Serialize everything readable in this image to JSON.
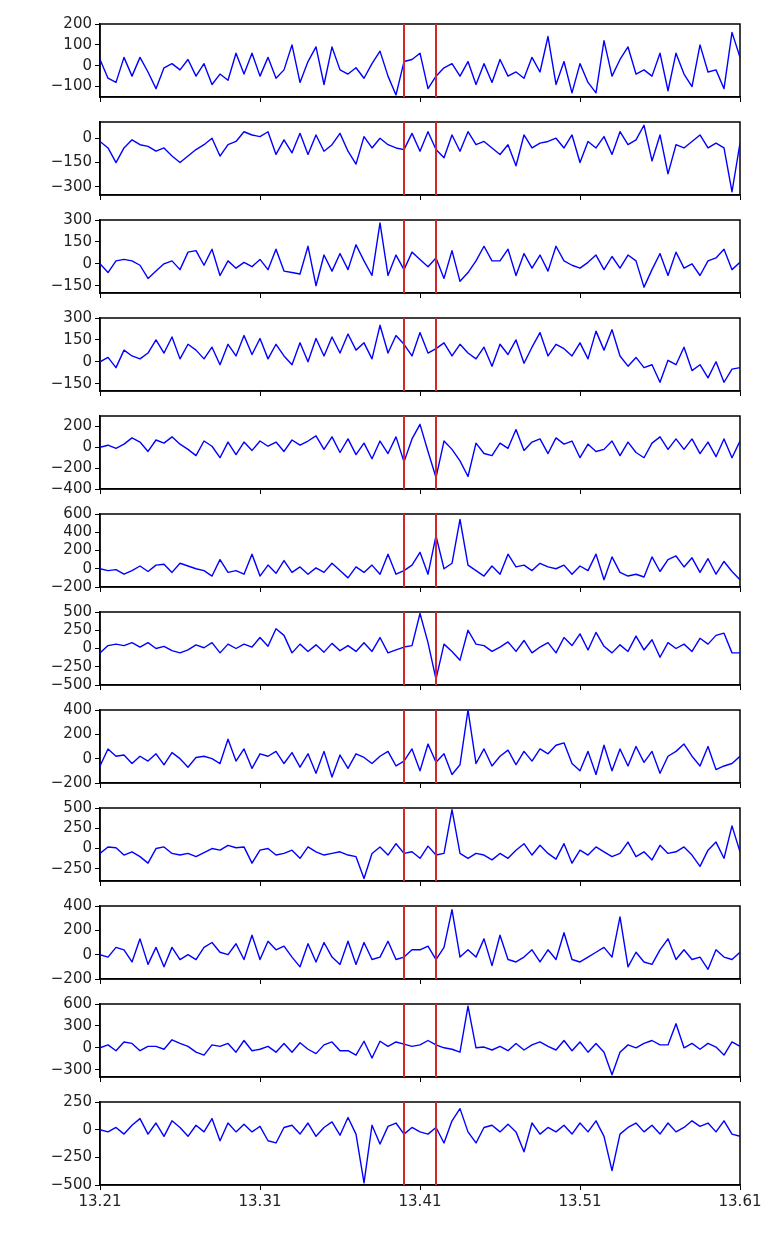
{
  "chart_data": [
    {
      "type": "line",
      "color": "#0000ff",
      "xlim": [
        13.21,
        13.61
      ],
      "xticks": [
        13.21,
        13.31,
        13.41,
        13.51,
        13.61
      ],
      "ylim": [
        -150,
        200
      ],
      "yticks": [
        -100,
        0,
        100,
        200
      ],
      "tick_labels": "y",
      "ref_lines": [
        {
          "axis": "x",
          "value": 13.4,
          "color": "#d62728"
        },
        {
          "axis": "x",
          "value": 13.42,
          "color": "#d62728"
        }
      ],
      "x": [
        13.21,
        13.215,
        13.22,
        13.225,
        13.23,
        13.235,
        13.24,
        13.245,
        13.25,
        13.255,
        13.26,
        13.265,
        13.27,
        13.275,
        13.28,
        13.285,
        13.29,
        13.295,
        13.3,
        13.305,
        13.31,
        13.315,
        13.32,
        13.325,
        13.33,
        13.335,
        13.34,
        13.345,
        13.35,
        13.355,
        13.36,
        13.365,
        13.37,
        13.375,
        13.38,
        13.385,
        13.39,
        13.395,
        13.4,
        13.405,
        13.41,
        13.415,
        13.42,
        13.425,
        13.43,
        13.435,
        13.44,
        13.445,
        13.45,
        13.455,
        13.46,
        13.465,
        13.47,
        13.475,
        13.48,
        13.485,
        13.49,
        13.495,
        13.5,
        13.505,
        13.51,
        13.515,
        13.52,
        13.525,
        13.53,
        13.535,
        13.54,
        13.545,
        13.55,
        13.555,
        13.56,
        13.565,
        13.57,
        13.575,
        13.58,
        13.585,
        13.59,
        13.595,
        13.6,
        13.605,
        13.61
      ],
      "values": [
        30,
        -60,
        -80,
        40,
        -50,
        40,
        -30,
        -110,
        -10,
        10,
        -20,
        30,
        -50,
        10,
        -90,
        -40,
        -70,
        60,
        -40,
        60,
        -50,
        40,
        -60,
        -20,
        100,
        -80,
        20,
        90,
        -90,
        90,
        -20,
        -40,
        -10,
        -60,
        10,
        70,
        -50,
        -140,
        20,
        30,
        60,
        -110,
        -50,
        -10,
        10,
        -50,
        20,
        -90,
        10,
        -80,
        30,
        -50,
        -30,
        -60,
        40,
        -30,
        140,
        -90,
        20,
        -130,
        10,
        -80,
        -130,
        120,
        -50,
        30,
        90,
        -40,
        -20,
        -50,
        60,
        -120,
        60,
        -40,
        -100,
        100,
        -30,
        -20,
        -110,
        160,
        40
      ]
    },
    {
      "type": "line",
      "color": "#0000ff",
      "xlim": [
        13.21,
        13.61
      ],
      "xticks": [
        13.21,
        13.31,
        13.41,
        13.51,
        13.61
      ],
      "ylim": [
        -350,
        100
      ],
      "yticks": [
        -300,
        -150,
        0
      ],
      "tick_labels": "y",
      "ref_lines": [
        {
          "axis": "x",
          "value": 13.4,
          "color": "#d62728"
        },
        {
          "axis": "x",
          "value": 13.42,
          "color": "#d62728"
        }
      ],
      "x": [
        13.21,
        13.215,
        13.22,
        13.225,
        13.23,
        13.235,
        13.24,
        13.245,
        13.25,
        13.255,
        13.26,
        13.265,
        13.27,
        13.275,
        13.28,
        13.285,
        13.29,
        13.295,
        13.3,
        13.305,
        13.31,
        13.315,
        13.32,
        13.325,
        13.33,
        13.335,
        13.34,
        13.345,
        13.35,
        13.355,
        13.36,
        13.365,
        13.37,
        13.375,
        13.38,
        13.385,
        13.39,
        13.395,
        13.4,
        13.405,
        13.41,
        13.415,
        13.42,
        13.425,
        13.43,
        13.435,
        13.44,
        13.445,
        13.45,
        13.455,
        13.46,
        13.465,
        13.47,
        13.475,
        13.48,
        13.485,
        13.49,
        13.495,
        13.5,
        13.505,
        13.51,
        13.515,
        13.52,
        13.525,
        13.53,
        13.535,
        13.54,
        13.545,
        13.55,
        13.555,
        13.56,
        13.565,
        13.57,
        13.575,
        13.58,
        13.585,
        13.59,
        13.595,
        13.6,
        13.605,
        13.61
      ],
      "values": [
        -20,
        -60,
        -150,
        -60,
        -10,
        -40,
        -50,
        -80,
        -60,
        -110,
        -150,
        -110,
        -70,
        -40,
        0,
        -110,
        -40,
        -20,
        40,
        20,
        10,
        40,
        -100,
        -10,
        -90,
        30,
        -100,
        20,
        -80,
        -40,
        30,
        -80,
        -160,
        10,
        -60,
        0,
        -40,
        -60,
        -70,
        30,
        -80,
        40,
        -70,
        -120,
        20,
        -80,
        40,
        -40,
        -20,
        -60,
        -100,
        -40,
        -170,
        20,
        -60,
        -30,
        -20,
        0,
        -60,
        20,
        -150,
        -20,
        -60,
        10,
        -100,
        40,
        -40,
        -10,
        80,
        -140,
        20,
        -220,
        -40,
        -60,
        -20,
        20,
        -60,
        -30,
        -60,
        -330,
        -30
      ]
    },
    {
      "type": "line",
      "color": "#0000ff",
      "xlim": [
        13.21,
        13.61
      ],
      "xticks": [
        13.21,
        13.31,
        13.41,
        13.51,
        13.61
      ],
      "ylim": [
        -200,
        300
      ],
      "yticks": [
        -150,
        0,
        150,
        300
      ],
      "tick_labels": "y",
      "ref_lines": [
        {
          "axis": "x",
          "value": 13.4,
          "color": "#d62728"
        },
        {
          "axis": "x",
          "value": 13.42,
          "color": "#d62728"
        }
      ],
      "x": [
        13.21,
        13.215,
        13.22,
        13.225,
        13.23,
        13.235,
        13.24,
        13.245,
        13.25,
        13.255,
        13.26,
        13.265,
        13.27,
        13.275,
        13.28,
        13.285,
        13.29,
        13.295,
        13.3,
        13.305,
        13.31,
        13.315,
        13.32,
        13.325,
        13.33,
        13.335,
        13.34,
        13.345,
        13.35,
        13.355,
        13.36,
        13.365,
        13.37,
        13.375,
        13.38,
        13.385,
        13.39,
        13.395,
        13.4,
        13.405,
        13.41,
        13.415,
        13.42,
        13.425,
        13.43,
        13.435,
        13.44,
        13.445,
        13.45,
        13.455,
        13.46,
        13.465,
        13.47,
        13.475,
        13.48,
        13.485,
        13.49,
        13.495,
        13.5,
        13.505,
        13.51,
        13.515,
        13.52,
        13.525,
        13.53,
        13.535,
        13.54,
        13.545,
        13.55,
        13.555,
        13.56,
        13.565,
        13.57,
        13.575,
        13.58,
        13.585,
        13.59,
        13.595,
        13.6,
        13.605,
        13.61
      ],
      "values": [
        0,
        -60,
        20,
        30,
        20,
        -10,
        -100,
        -50,
        0,
        20,
        -40,
        80,
        90,
        -10,
        100,
        -80,
        20,
        -30,
        10,
        -20,
        30,
        -40,
        100,
        -50,
        -60,
        -70,
        120,
        -150,
        60,
        -50,
        70,
        -40,
        130,
        20,
        -80,
        280,
        -80,
        60,
        -40,
        80,
        30,
        -20,
        40,
        -100,
        90,
        -120,
        -60,
        20,
        120,
        20,
        20,
        100,
        -80,
        70,
        -30,
        60,
        -50,
        120,
        20,
        -10,
        -30,
        10,
        60,
        -40,
        50,
        -30,
        60,
        20,
        -160,
        -40,
        70,
        -80,
        80,
        -30,
        0,
        -80,
        20,
        40,
        100,
        -40,
        10
      ]
    },
    {
      "type": "line",
      "color": "#0000ff",
      "xlim": [
        13.21,
        13.61
      ],
      "xticks": [
        13.21,
        13.31,
        13.41,
        13.51,
        13.61
      ],
      "ylim": [
        -200,
        300
      ],
      "yticks": [
        -150,
        0,
        150,
        300
      ],
      "tick_labels": "y",
      "ref_lines": [
        {
          "axis": "x",
          "value": 13.4,
          "color": "#d62728"
        },
        {
          "axis": "x",
          "value": 13.42,
          "color": "#d62728"
        }
      ],
      "x": [
        13.21,
        13.215,
        13.22,
        13.225,
        13.23,
        13.235,
        13.24,
        13.245,
        13.25,
        13.255,
        13.26,
        13.265,
        13.27,
        13.275,
        13.28,
        13.285,
        13.29,
        13.295,
        13.3,
        13.305,
        13.31,
        13.315,
        13.32,
        13.325,
        13.33,
        13.335,
        13.34,
        13.345,
        13.35,
        13.355,
        13.36,
        13.365,
        13.37,
        13.375,
        13.38,
        13.385,
        13.39,
        13.395,
        13.4,
        13.405,
        13.41,
        13.415,
        13.42,
        13.425,
        13.43,
        13.435,
        13.44,
        13.445,
        13.45,
        13.455,
        13.46,
        13.465,
        13.47,
        13.475,
        13.48,
        13.485,
        13.49,
        13.495,
        13.5,
        13.505,
        13.51,
        13.515,
        13.52,
        13.525,
        13.53,
        13.535,
        13.54,
        13.545,
        13.55,
        13.555,
        13.56,
        13.565,
        13.57,
        13.575,
        13.58,
        13.585,
        13.59,
        13.595,
        13.6,
        13.605,
        13.61
      ],
      "values": [
        0,
        30,
        -40,
        80,
        40,
        20,
        60,
        150,
        60,
        170,
        20,
        120,
        80,
        20,
        100,
        -20,
        120,
        40,
        180,
        50,
        160,
        20,
        120,
        40,
        -20,
        130,
        0,
        160,
        40,
        170,
        60,
        190,
        80,
        130,
        20,
        250,
        60,
        180,
        120,
        40,
        200,
        60,
        90,
        130,
        40,
        120,
        60,
        20,
        100,
        -30,
        120,
        50,
        150,
        -10,
        100,
        200,
        40,
        120,
        90,
        40,
        130,
        20,
        210,
        80,
        220,
        40,
        -30,
        30,
        -40,
        -20,
        -140,
        10,
        -20,
        100,
        -60,
        -20,
        -110,
        0,
        -140,
        -50,
        -40
      ]
    },
    {
      "type": "line",
      "color": "#0000ff",
      "xlim": [
        13.21,
        13.61
      ],
      "xticks": [
        13.21,
        13.31,
        13.41,
        13.51,
        13.61
      ],
      "ylim": [
        -400,
        300
      ],
      "yticks": [
        -400,
        -200,
        0,
        200
      ],
      "tick_labels": "y",
      "ref_lines": [
        {
          "axis": "x",
          "value": 13.4,
          "color": "#d62728"
        },
        {
          "axis": "x",
          "value": 13.42,
          "color": "#d62728"
        }
      ],
      "x": [
        13.21,
        13.215,
        13.22,
        13.225,
        13.23,
        13.235,
        13.24,
        13.245,
        13.25,
        13.255,
        13.26,
        13.265,
        13.27,
        13.275,
        13.28,
        13.285,
        13.29,
        13.295,
        13.3,
        13.305,
        13.31,
        13.315,
        13.32,
        13.325,
        13.33,
        13.335,
        13.34,
        13.345,
        13.35,
        13.355,
        13.36,
        13.365,
        13.37,
        13.375,
        13.38,
        13.385,
        13.39,
        13.395,
        13.4,
        13.405,
        13.41,
        13.415,
        13.42,
        13.425,
        13.43,
        13.435,
        13.44,
        13.445,
        13.45,
        13.455,
        13.46,
        13.465,
        13.47,
        13.475,
        13.48,
        13.485,
        13.49,
        13.495,
        13.5,
        13.505,
        13.51,
        13.515,
        13.52,
        13.525,
        13.53,
        13.535,
        13.54,
        13.545,
        13.55,
        13.555,
        13.56,
        13.565,
        13.57,
        13.575,
        13.58,
        13.585,
        13.59,
        13.595,
        13.6,
        13.605,
        13.61
      ],
      "values": [
        0,
        20,
        -10,
        30,
        90,
        50,
        -40,
        70,
        40,
        100,
        30,
        -20,
        -80,
        60,
        10,
        -100,
        50,
        -70,
        50,
        -30,
        60,
        10,
        50,
        -40,
        70,
        20,
        60,
        110,
        -20,
        100,
        -50,
        80,
        -70,
        40,
        -110,
        60,
        -60,
        100,
        -140,
        80,
        220,
        -40,
        -290,
        60,
        -20,
        -130,
        -280,
        40,
        -60,
        -80,
        40,
        -10,
        170,
        -30,
        50,
        80,
        -60,
        90,
        30,
        60,
        -100,
        30,
        -40,
        -20,
        60,
        -80,
        50,
        -50,
        -100,
        40,
        100,
        -20,
        80,
        -20,
        80,
        -60,
        50,
        -90,
        80,
        -100,
        60
      ]
    },
    {
      "type": "line",
      "color": "#0000ff",
      "xlim": [
        13.21,
        13.61
      ],
      "xticks": [
        13.21,
        13.31,
        13.41,
        13.51,
        13.61
      ],
      "ylim": [
        -200,
        600
      ],
      "yticks": [
        -200,
        0,
        200,
        400,
        600
      ],
      "tick_labels": "y",
      "ref_lines": [
        {
          "axis": "x",
          "value": 13.4,
          "color": "#d62728"
        },
        {
          "axis": "x",
          "value": 13.42,
          "color": "#d62728"
        }
      ],
      "x": [
        13.21,
        13.215,
        13.22,
        13.225,
        13.23,
        13.235,
        13.24,
        13.245,
        13.25,
        13.255,
        13.26,
        13.265,
        13.27,
        13.275,
        13.28,
        13.285,
        13.29,
        13.295,
        13.3,
        13.305,
        13.31,
        13.315,
        13.32,
        13.325,
        13.33,
        13.335,
        13.34,
        13.345,
        13.35,
        13.355,
        13.36,
        13.365,
        13.37,
        13.375,
        13.38,
        13.385,
        13.39,
        13.395,
        13.4,
        13.405,
        13.41,
        13.415,
        13.42,
        13.425,
        13.43,
        13.435,
        13.44,
        13.445,
        13.45,
        13.455,
        13.46,
        13.465,
        13.47,
        13.475,
        13.48,
        13.485,
        13.49,
        13.495,
        13.5,
        13.505,
        13.51,
        13.515,
        13.52,
        13.525,
        13.53,
        13.535,
        13.54,
        13.545,
        13.55,
        13.555,
        13.56,
        13.565,
        13.57,
        13.575,
        13.58,
        13.585,
        13.59,
        13.595,
        13.6,
        13.605,
        13.61
      ],
      "values": [
        0,
        -20,
        -10,
        -60,
        -20,
        30,
        -30,
        40,
        50,
        -40,
        60,
        30,
        0,
        -20,
        -80,
        100,
        -40,
        -20,
        -60,
        160,
        -80,
        40,
        -50,
        90,
        -40,
        20,
        -60,
        10,
        -40,
        60,
        -20,
        -100,
        20,
        -40,
        40,
        -60,
        160,
        -60,
        -20,
        40,
        180,
        -60,
        360,
        0,
        60,
        540,
        40,
        -20,
        -80,
        30,
        -60,
        160,
        20,
        40,
        -20,
        60,
        20,
        0,
        40,
        -60,
        30,
        -20,
        160,
        -120,
        130,
        -40,
        -80,
        -60,
        -90,
        130,
        -30,
        100,
        140,
        20,
        120,
        -40,
        110,
        -60,
        80,
        -30,
        -120
      ]
    },
    {
      "type": "line",
      "color": "#0000ff",
      "xlim": [
        13.21,
        13.61
      ],
      "xticks": [
        13.21,
        13.31,
        13.41,
        13.51,
        13.61
      ],
      "ylim": [
        -500,
        500
      ],
      "yticks": [
        -500,
        -250,
        0,
        250,
        500
      ],
      "tick_labels": "y",
      "ref_lines": [
        {
          "axis": "x",
          "value": 13.4,
          "color": "#d62728"
        },
        {
          "axis": "x",
          "value": 13.42,
          "color": "#d62728"
        }
      ],
      "x": [
        13.21,
        13.215,
        13.22,
        13.225,
        13.23,
        13.235,
        13.24,
        13.245,
        13.25,
        13.255,
        13.26,
        13.265,
        13.27,
        13.275,
        13.28,
        13.285,
        13.29,
        13.295,
        13.3,
        13.305,
        13.31,
        13.315,
        13.32,
        13.325,
        13.33,
        13.335,
        13.34,
        13.345,
        13.35,
        13.355,
        13.36,
        13.365,
        13.37,
        13.375,
        13.38,
        13.385,
        13.39,
        13.395,
        13.4,
        13.405,
        13.41,
        13.415,
        13.42,
        13.425,
        13.43,
        13.435,
        13.44,
        13.445,
        13.45,
        13.455,
        13.46,
        13.465,
        13.47,
        13.475,
        13.48,
        13.485,
        13.49,
        13.495,
        13.5,
        13.505,
        13.51,
        13.515,
        13.52,
        13.525,
        13.53,
        13.535,
        13.54,
        13.545,
        13.55,
        13.555,
        13.56,
        13.565,
        13.57,
        13.575,
        13.58,
        13.585,
        13.59,
        13.595,
        13.6,
        13.605,
        13.61
      ],
      "values": [
        -60,
        40,
        60,
        40,
        80,
        20,
        80,
        0,
        30,
        -30,
        -60,
        -20,
        50,
        10,
        80,
        -60,
        60,
        0,
        60,
        20,
        150,
        30,
        270,
        180,
        -60,
        60,
        -40,
        50,
        -50,
        70,
        -30,
        40,
        -40,
        80,
        -40,
        150,
        -60,
        -20,
        20,
        40,
        480,
        80,
        -420,
        60,
        -40,
        -160,
        250,
        60,
        40,
        -40,
        20,
        90,
        -40,
        110,
        -60,
        20,
        80,
        -60,
        150,
        40,
        200,
        -20,
        220,
        30,
        -60,
        50,
        -40,
        170,
        -20,
        120,
        -120,
        80,
        0,
        60,
        -40,
        140,
        60,
        180,
        210,
        -60,
        -60
      ]
    },
    {
      "type": "line",
      "color": "#0000ff",
      "xlim": [
        13.21,
        13.61
      ],
      "xticks": [
        13.21,
        13.31,
        13.41,
        13.51,
        13.61
      ],
      "ylim": [
        -200,
        400
      ],
      "yticks": [
        -200,
        0,
        200,
        400
      ],
      "tick_labels": "y",
      "ref_lines": [
        {
          "axis": "x",
          "value": 13.4,
          "color": "#d62728"
        },
        {
          "axis": "x",
          "value": 13.42,
          "color": "#d62728"
        }
      ],
      "x": [
        13.21,
        13.215,
        13.22,
        13.225,
        13.23,
        13.235,
        13.24,
        13.245,
        13.25,
        13.255,
        13.26,
        13.265,
        13.27,
        13.275,
        13.28,
        13.285,
        13.29,
        13.295,
        13.3,
        13.305,
        13.31,
        13.315,
        13.32,
        13.325,
        13.33,
        13.335,
        13.34,
        13.345,
        13.35,
        13.355,
        13.36,
        13.365,
        13.37,
        13.375,
        13.38,
        13.385,
        13.39,
        13.395,
        13.4,
        13.405,
        13.41,
        13.415,
        13.42,
        13.425,
        13.43,
        13.435,
        13.44,
        13.445,
        13.45,
        13.455,
        13.46,
        13.465,
        13.47,
        13.475,
        13.48,
        13.485,
        13.49,
        13.495,
        13.5,
        13.505,
        13.51,
        13.515,
        13.52,
        13.525,
        13.53,
        13.535,
        13.54,
        13.545,
        13.55,
        13.555,
        13.56,
        13.565,
        13.57,
        13.575,
        13.58,
        13.585,
        13.59,
        13.595,
        13.6,
        13.605,
        13.61
      ],
      "values": [
        -60,
        80,
        20,
        30,
        -40,
        20,
        -20,
        40,
        -50,
        50,
        0,
        -70,
        10,
        20,
        0,
        -40,
        160,
        -20,
        80,
        -80,
        40,
        20,
        60,
        -40,
        50,
        -70,
        40,
        -120,
        60,
        -150,
        30,
        -80,
        40,
        10,
        -40,
        20,
        60,
        -60,
        -20,
        80,
        -100,
        120,
        -30,
        40,
        -130,
        -50,
        400,
        -40,
        80,
        -60,
        20,
        70,
        -50,
        60,
        -20,
        80,
        40,
        110,
        130,
        -40,
        -100,
        60,
        -130,
        110,
        -100,
        80,
        -60,
        100,
        -30,
        60,
        -120,
        20,
        60,
        120,
        20,
        -60,
        100,
        -90,
        -60,
        -40,
        20
      ]
    },
    {
      "type": "line",
      "color": "#0000ff",
      "xlim": [
        13.21,
        13.61
      ],
      "xticks": [
        13.21,
        13.31,
        13.41,
        13.51,
        13.61
      ],
      "ylim": [
        -400,
        500
      ],
      "yticks": [
        -250,
        0,
        250,
        500
      ],
      "tick_labels": "y",
      "ref_lines": [
        {
          "axis": "x",
          "value": 13.4,
          "color": "#d62728"
        },
        {
          "axis": "x",
          "value": 13.42,
          "color": "#d62728"
        }
      ],
      "x": [
        13.21,
        13.215,
        13.22,
        13.225,
        13.23,
        13.235,
        13.24,
        13.245,
        13.25,
        13.255,
        13.26,
        13.265,
        13.27,
        13.275,
        13.28,
        13.285,
        13.29,
        13.295,
        13.3,
        13.305,
        13.31,
        13.315,
        13.32,
        13.325,
        13.33,
        13.335,
        13.34,
        13.345,
        13.35,
        13.355,
        13.36,
        13.365,
        13.37,
        13.375,
        13.38,
        13.385,
        13.39,
        13.395,
        13.4,
        13.405,
        13.41,
        13.415,
        13.42,
        13.425,
        13.43,
        13.435,
        13.44,
        13.445,
        13.45,
        13.455,
        13.46,
        13.465,
        13.47,
        13.475,
        13.48,
        13.485,
        13.49,
        13.495,
        13.5,
        13.505,
        13.51,
        13.515,
        13.52,
        13.525,
        13.53,
        13.535,
        13.54,
        13.545,
        13.55,
        13.555,
        13.56,
        13.565,
        13.57,
        13.575,
        13.58,
        13.585,
        13.59,
        13.595,
        13.6,
        13.605,
        13.61
      ],
      "values": [
        -60,
        20,
        10,
        -80,
        -40,
        -100,
        -180,
        0,
        20,
        -60,
        -80,
        -60,
        -100,
        -50,
        0,
        -20,
        40,
        10,
        20,
        -180,
        -20,
        0,
        -80,
        -60,
        -20,
        -120,
        20,
        -40,
        -80,
        -60,
        -40,
        -80,
        -100,
        -370,
        -60,
        20,
        -80,
        60,
        -60,
        -40,
        -120,
        30,
        -80,
        -60,
        480,
        -60,
        -120,
        -60,
        -80,
        -140,
        -60,
        -120,
        -20,
        60,
        -80,
        40,
        -60,
        -130,
        60,
        -180,
        -20,
        -80,
        20,
        -40,
        -100,
        -60,
        80,
        -100,
        -40,
        -140,
        40,
        -60,
        -40,
        20,
        -80,
        -220,
        -20,
        80,
        -120,
        280,
        -40
      ]
    },
    {
      "type": "line",
      "color": "#0000ff",
      "xlim": [
        13.21,
        13.61
      ],
      "xticks": [
        13.21,
        13.31,
        13.41,
        13.51,
        13.61
      ],
      "ylim": [
        -200,
        400
      ],
      "yticks": [
        -200,
        0,
        200,
        400
      ],
      "tick_labels": "y",
      "ref_lines": [
        {
          "axis": "x",
          "value": 13.4,
          "color": "#d62728"
        },
        {
          "axis": "x",
          "value": 13.42,
          "color": "#d62728"
        }
      ],
      "x": [
        13.21,
        13.215,
        13.22,
        13.225,
        13.23,
        13.235,
        13.24,
        13.245,
        13.25,
        13.255,
        13.26,
        13.265,
        13.27,
        13.275,
        13.28,
        13.285,
        13.29,
        13.295,
        13.3,
        13.305,
        13.31,
        13.315,
        13.32,
        13.325,
        13.33,
        13.335,
        13.34,
        13.345,
        13.35,
        13.355,
        13.36,
        13.365,
        13.37,
        13.375,
        13.38,
        13.385,
        13.39,
        13.395,
        13.4,
        13.405,
        13.41,
        13.415,
        13.42,
        13.425,
        13.43,
        13.435,
        13.44,
        13.445,
        13.45,
        13.455,
        13.46,
        13.465,
        13.47,
        13.475,
        13.48,
        13.485,
        13.49,
        13.495,
        13.5,
        13.505,
        13.51,
        13.515,
        13.52,
        13.525,
        13.53,
        13.535,
        13.54,
        13.545,
        13.55,
        13.555,
        13.56,
        13.565,
        13.57,
        13.575,
        13.58,
        13.585,
        13.59,
        13.595,
        13.6,
        13.605,
        13.61
      ],
      "values": [
        0,
        -20,
        60,
        40,
        -60,
        130,
        -80,
        60,
        -100,
        60,
        -40,
        0,
        -40,
        60,
        100,
        20,
        0,
        90,
        -40,
        160,
        -40,
        110,
        40,
        70,
        -20,
        -100,
        90,
        -60,
        100,
        -20,
        -80,
        110,
        -80,
        100,
        -40,
        -20,
        110,
        -40,
        -20,
        40,
        40,
        70,
        -40,
        60,
        370,
        -20,
        40,
        -20,
        130,
        -90,
        160,
        -40,
        -60,
        -20,
        40,
        -60,
        40,
        -40,
        180,
        -40,
        -60,
        -20,
        20,
        60,
        -20,
        310,
        -100,
        20,
        -60,
        -80,
        40,
        130,
        -40,
        40,
        -40,
        -20,
        -120,
        40,
        -20,
        -40,
        20
      ]
    },
    {
      "type": "line",
      "color": "#0000ff",
      "xlim": [
        13.21,
        13.61
      ],
      "xticks": [
        13.21,
        13.31,
        13.41,
        13.51,
        13.61
      ],
      "ylim": [
        -400,
        600
      ],
      "yticks": [
        -300,
        0,
        300,
        600
      ],
      "tick_labels": "y",
      "ref_lines": [
        {
          "axis": "x",
          "value": 13.4,
          "color": "#d62728"
        },
        {
          "axis": "x",
          "value": 13.42,
          "color": "#d62728"
        }
      ],
      "x": [
        13.21,
        13.215,
        13.22,
        13.225,
        13.23,
        13.235,
        13.24,
        13.245,
        13.25,
        13.255,
        13.26,
        13.265,
        13.27,
        13.275,
        13.28,
        13.285,
        13.29,
        13.295,
        13.3,
        13.305,
        13.31,
        13.315,
        13.32,
        13.325,
        13.33,
        13.335,
        13.34,
        13.345,
        13.35,
        13.355,
        13.36,
        13.365,
        13.37,
        13.375,
        13.38,
        13.385,
        13.39,
        13.395,
        13.4,
        13.405,
        13.41,
        13.415,
        13.42,
        13.425,
        13.43,
        13.435,
        13.44,
        13.445,
        13.45,
        13.455,
        13.46,
        13.465,
        13.47,
        13.475,
        13.48,
        13.485,
        13.49,
        13.495,
        13.5,
        13.505,
        13.51,
        13.515,
        13.52,
        13.525,
        13.53,
        13.535,
        13.54,
        13.545,
        13.55,
        13.555,
        13.56,
        13.565,
        13.57,
        13.575,
        13.58,
        13.585,
        13.59,
        13.595,
        13.6,
        13.605,
        13.61
      ],
      "values": [
        0,
        40,
        -40,
        80,
        60,
        -40,
        20,
        20,
        -20,
        110,
        60,
        20,
        -60,
        -100,
        40,
        20,
        60,
        -60,
        100,
        -40,
        -20,
        20,
        -60,
        60,
        -60,
        70,
        -20,
        -80,
        40,
        80,
        -40,
        -40,
        -100,
        90,
        -140,
        90,
        20,
        80,
        50,
        20,
        40,
        100,
        40,
        0,
        -20,
        -60,
        570,
        0,
        10,
        -30,
        20,
        -40,
        60,
        -30,
        40,
        80,
        20,
        -30,
        100,
        -40,
        80,
        -60,
        60,
        -60,
        -370,
        -60,
        40,
        0,
        60,
        100,
        40,
        40,
        330,
        0,
        60,
        -20,
        60,
        10,
        -100,
        80,
        20
      ]
    },
    {
      "type": "line",
      "color": "#0000ff",
      "xlim": [
        13.21,
        13.61
      ],
      "xticks": [
        13.21,
        13.31,
        13.41,
        13.51,
        13.61
      ],
      "ylim": [
        -500,
        250
      ],
      "yticks": [
        -500,
        -250,
        0,
        250
      ],
      "ref_lines": [
        {
          "axis": "x",
          "value": 13.4,
          "color": "#d62728"
        },
        {
          "axis": "x",
          "value": 13.42,
          "color": "#d62728"
        }
      ],
      "x": [
        13.21,
        13.215,
        13.22,
        13.225,
        13.23,
        13.235,
        13.24,
        13.245,
        13.25,
        13.255,
        13.26,
        13.265,
        13.27,
        13.275,
        13.28,
        13.285,
        13.29,
        13.295,
        13.3,
        13.305,
        13.31,
        13.315,
        13.32,
        13.325,
        13.33,
        13.335,
        13.34,
        13.345,
        13.35,
        13.355,
        13.36,
        13.365,
        13.37,
        13.375,
        13.38,
        13.385,
        13.39,
        13.395,
        13.4,
        13.405,
        13.41,
        13.415,
        13.42,
        13.425,
        13.43,
        13.435,
        13.44,
        13.445,
        13.45,
        13.455,
        13.46,
        13.465,
        13.47,
        13.475,
        13.48,
        13.485,
        13.49,
        13.495,
        13.5,
        13.505,
        13.51,
        13.515,
        13.52,
        13.525,
        13.53,
        13.535,
        13.54,
        13.545,
        13.55,
        13.555,
        13.56,
        13.565,
        13.57,
        13.575,
        13.58,
        13.585,
        13.59,
        13.595,
        13.6,
        13.605,
        13.61
      ],
      "values": [
        0,
        -20,
        20,
        -40,
        40,
        100,
        -40,
        60,
        -60,
        80,
        20,
        -60,
        40,
        -20,
        100,
        -100,
        60,
        -20,
        50,
        -20,
        30,
        -100,
        -120,
        20,
        40,
        -40,
        60,
        -60,
        20,
        70,
        -50,
        110,
        -40,
        -480,
        40,
        -130,
        30,
        60,
        -40,
        20,
        -20,
        -40,
        20,
        -120,
        80,
        190,
        -20,
        -120,
        20,
        40,
        -20,
        50,
        -20,
        -200,
        60,
        -40,
        20,
        -20,
        40,
        -40,
        60,
        -20,
        80,
        -60,
        -370,
        -40,
        20,
        60,
        -20,
        40,
        -40,
        60,
        -20,
        20,
        80,
        30,
        60,
        -20,
        80,
        -40,
        -60
      ]
    }
  ]
}
